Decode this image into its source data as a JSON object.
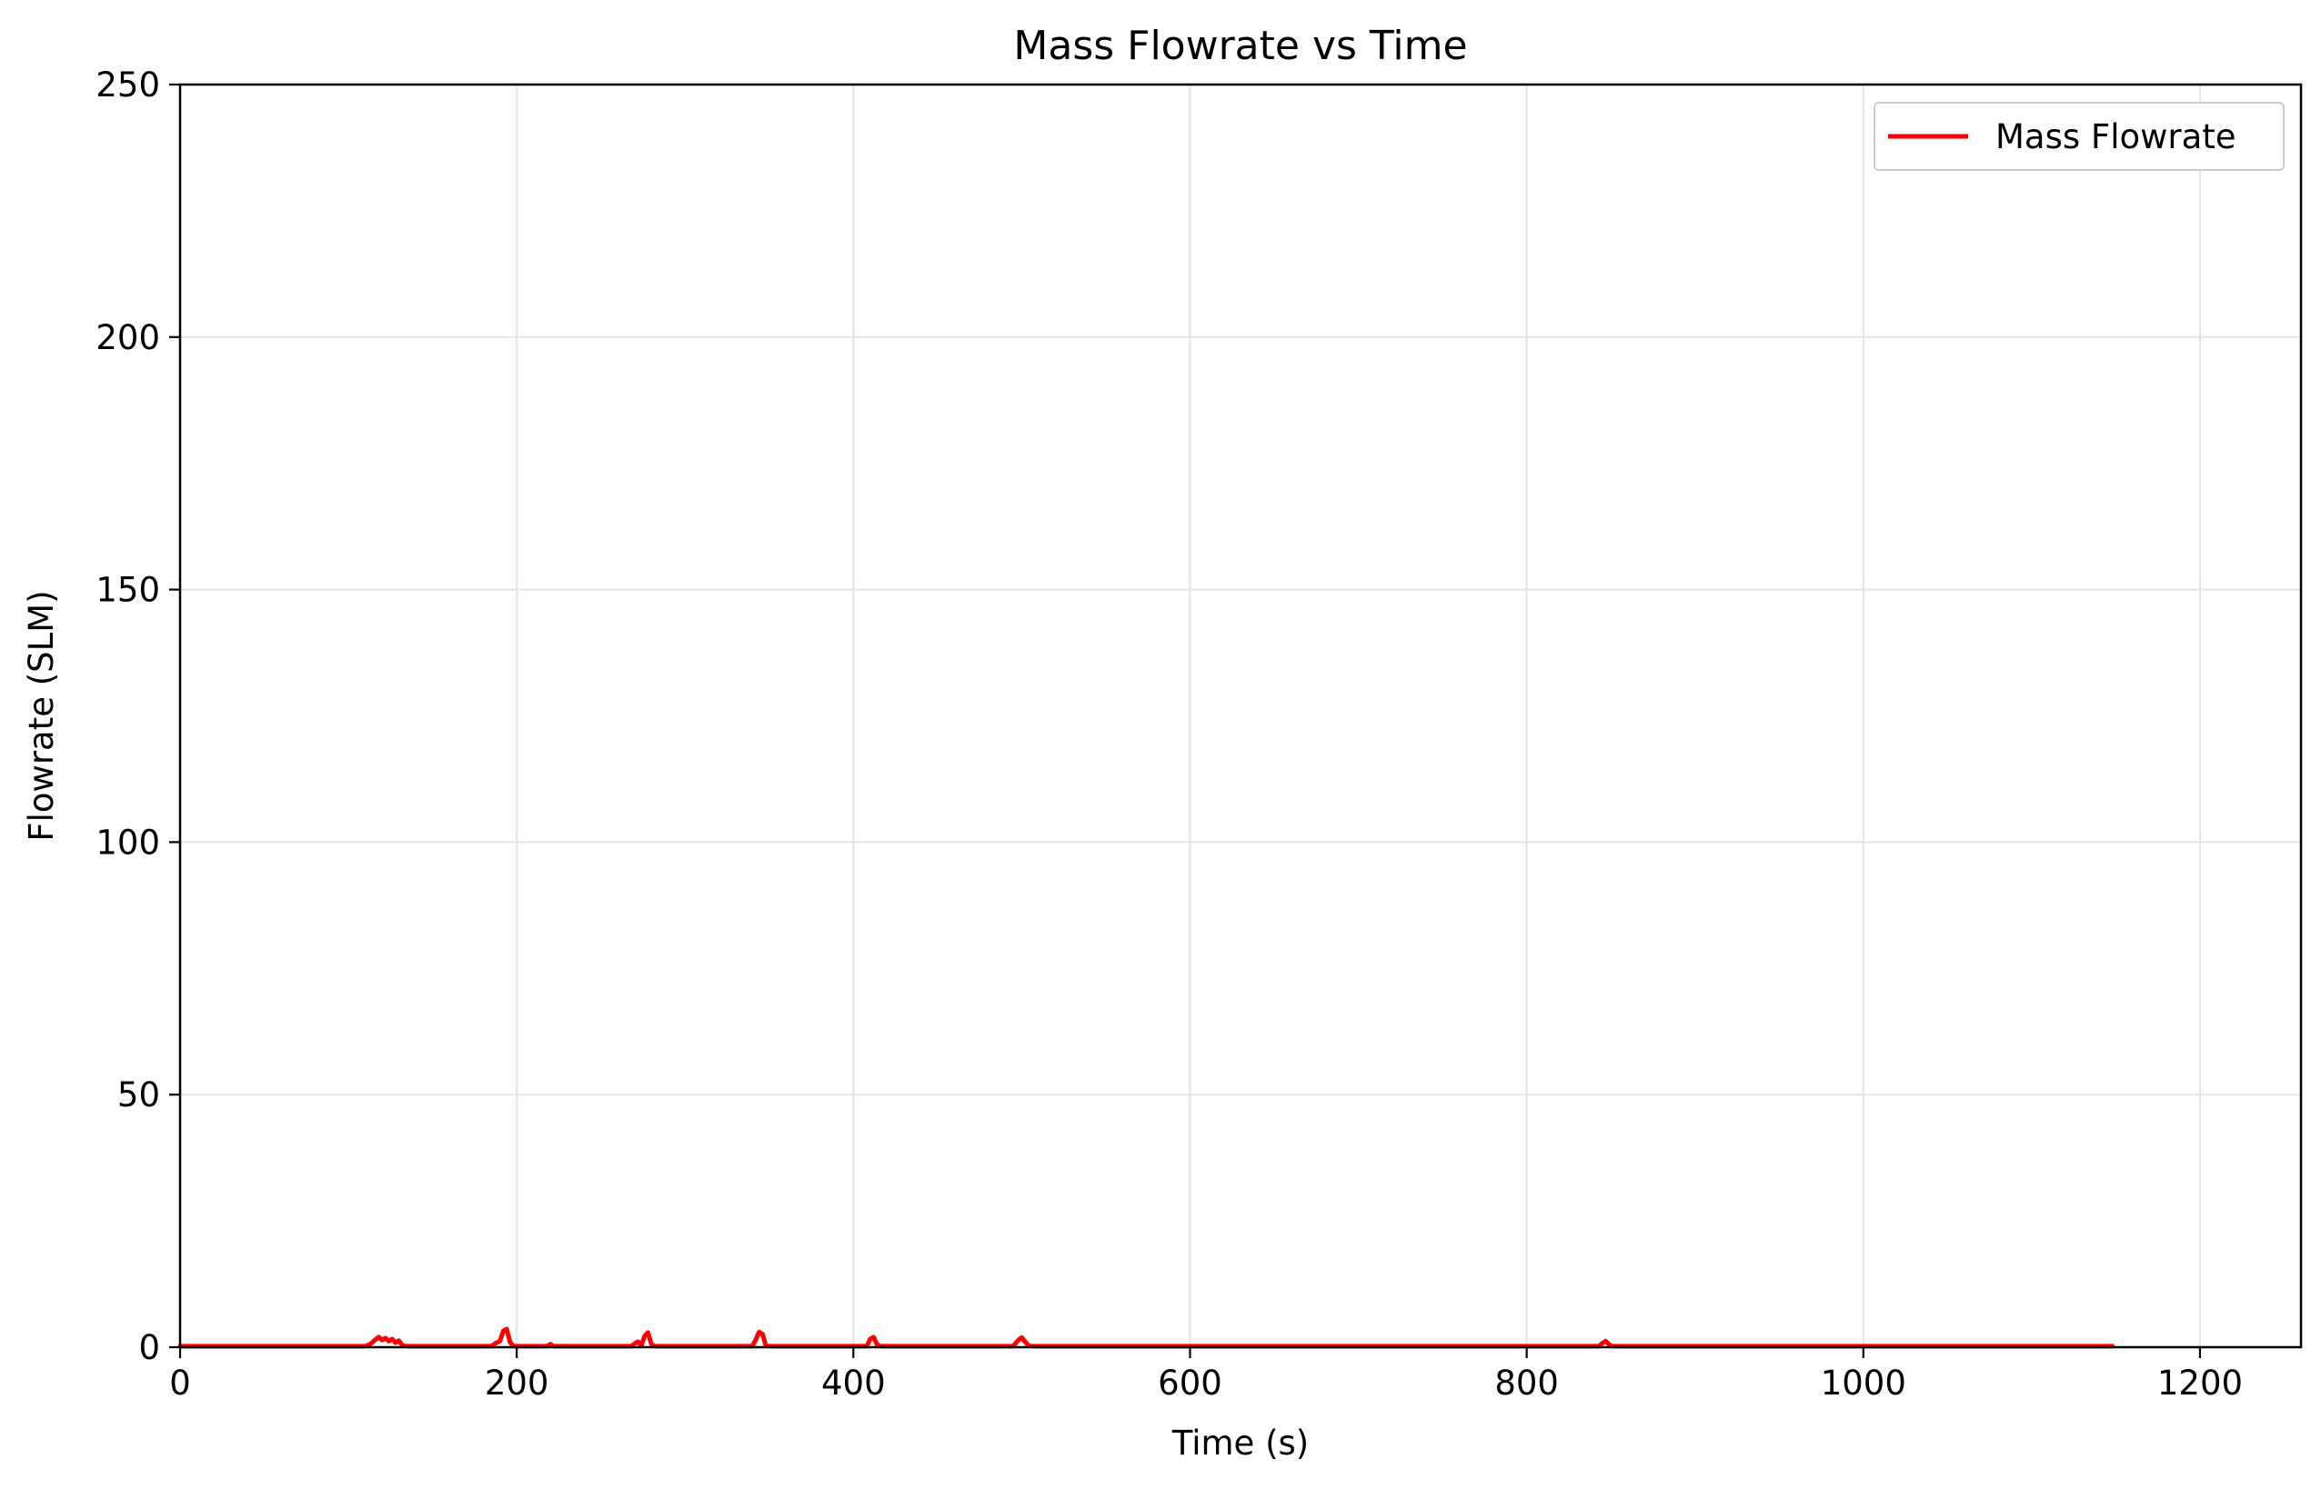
{
  "chart_data": {
    "type": "line",
    "title": "Mass Flowrate vs Time",
    "xlabel": "Time (s)",
    "ylabel": "Flowrate (SLM)",
    "xlim": [
      0,
      1260
    ],
    "ylim": [
      0,
      250
    ],
    "xticks": [
      0,
      200,
      400,
      600,
      800,
      1000,
      1200
    ],
    "yticks": [
      0,
      50,
      100,
      150,
      200,
      250
    ],
    "grid": true,
    "legend": "top-right",
    "series": [
      {
        "name": "Mass Flowrate",
        "color": "#ff0000",
        "x": [
          0,
          110,
          113,
          116,
          118,
          120,
          122,
          124,
          126,
          128,
          130,
          132,
          134,
          185,
          188,
          190,
          192,
          194,
          196,
          198,
          200,
          218,
          220,
          222,
          268,
          270,
          272,
          274,
          276,
          278,
          280,
          282,
          340,
          342,
          344,
          346,
          348,
          350,
          408,
          410,
          412,
          414,
          416,
          495,
          498,
          500,
          502,
          504,
          506,
          843,
          845,
          847,
          849,
          851,
          1148
        ],
        "y": [
          0.2,
          0.2,
          0.6,
          1.5,
          2.0,
          1.4,
          1.8,
          1.2,
          1.6,
          0.9,
          1.3,
          0.4,
          0.2,
          0.2,
          0.9,
          1.2,
          3.2,
          3.6,
          1.0,
          0.2,
          0.2,
          0.2,
          0.6,
          0.2,
          0.2,
          0.7,
          1.1,
          0.3,
          2.2,
          2.9,
          0.6,
          0.2,
          0.2,
          1.5,
          3.0,
          2.6,
          0.3,
          0.2,
          0.2,
          1.6,
          2.0,
          0.6,
          0.2,
          0.2,
          1.4,
          1.9,
          1.1,
          0.3,
          0.2,
          0.2,
          0.8,
          1.2,
          0.5,
          0.2,
          0.2
        ]
      }
    ]
  }
}
